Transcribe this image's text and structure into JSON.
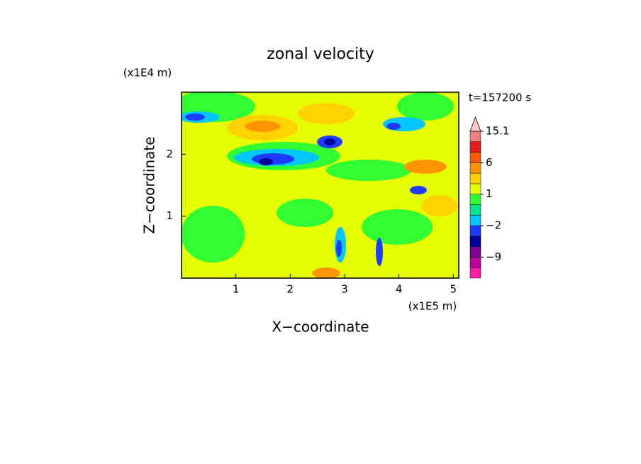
{
  "chart_data": {
    "type": "contour",
    "title": "zonal velocity",
    "x_label": "X−coordinate",
    "y_label": "Z−coordinate",
    "x_unit": "(x1E5 m)",
    "y_unit": "(x1E4 m)",
    "time_label": "t=157200 s",
    "xlim": [
      0,
      5.1
    ],
    "xticks": [
      1,
      2,
      3,
      4,
      5
    ],
    "ylim": [
      0,
      3
    ],
    "yticks": [
      1,
      2
    ],
    "colorbar": {
      "levels": [
        -15,
        -12,
        -9,
        -6,
        -4,
        -2,
        -1,
        0,
        1,
        2,
        4,
        6,
        9,
        12,
        15.1
      ],
      "colors": [
        "#ff1aa8",
        "#c0009c",
        "#7a0096",
        "#00009c",
        "#1e3cff",
        "#00c8ff",
        "#00e68c",
        "#32ff32",
        "#e6ff00",
        "#ffd200",
        "#ff9600",
        "#ff5a00",
        "#e61e1e",
        "#f08080",
        "#ffc8c8"
      ],
      "ticks": [
        {
          "value": -9,
          "label": "−9"
        },
        {
          "value": -2,
          "label": "−2"
        },
        1,
        6,
        15.1
      ]
    }
  }
}
